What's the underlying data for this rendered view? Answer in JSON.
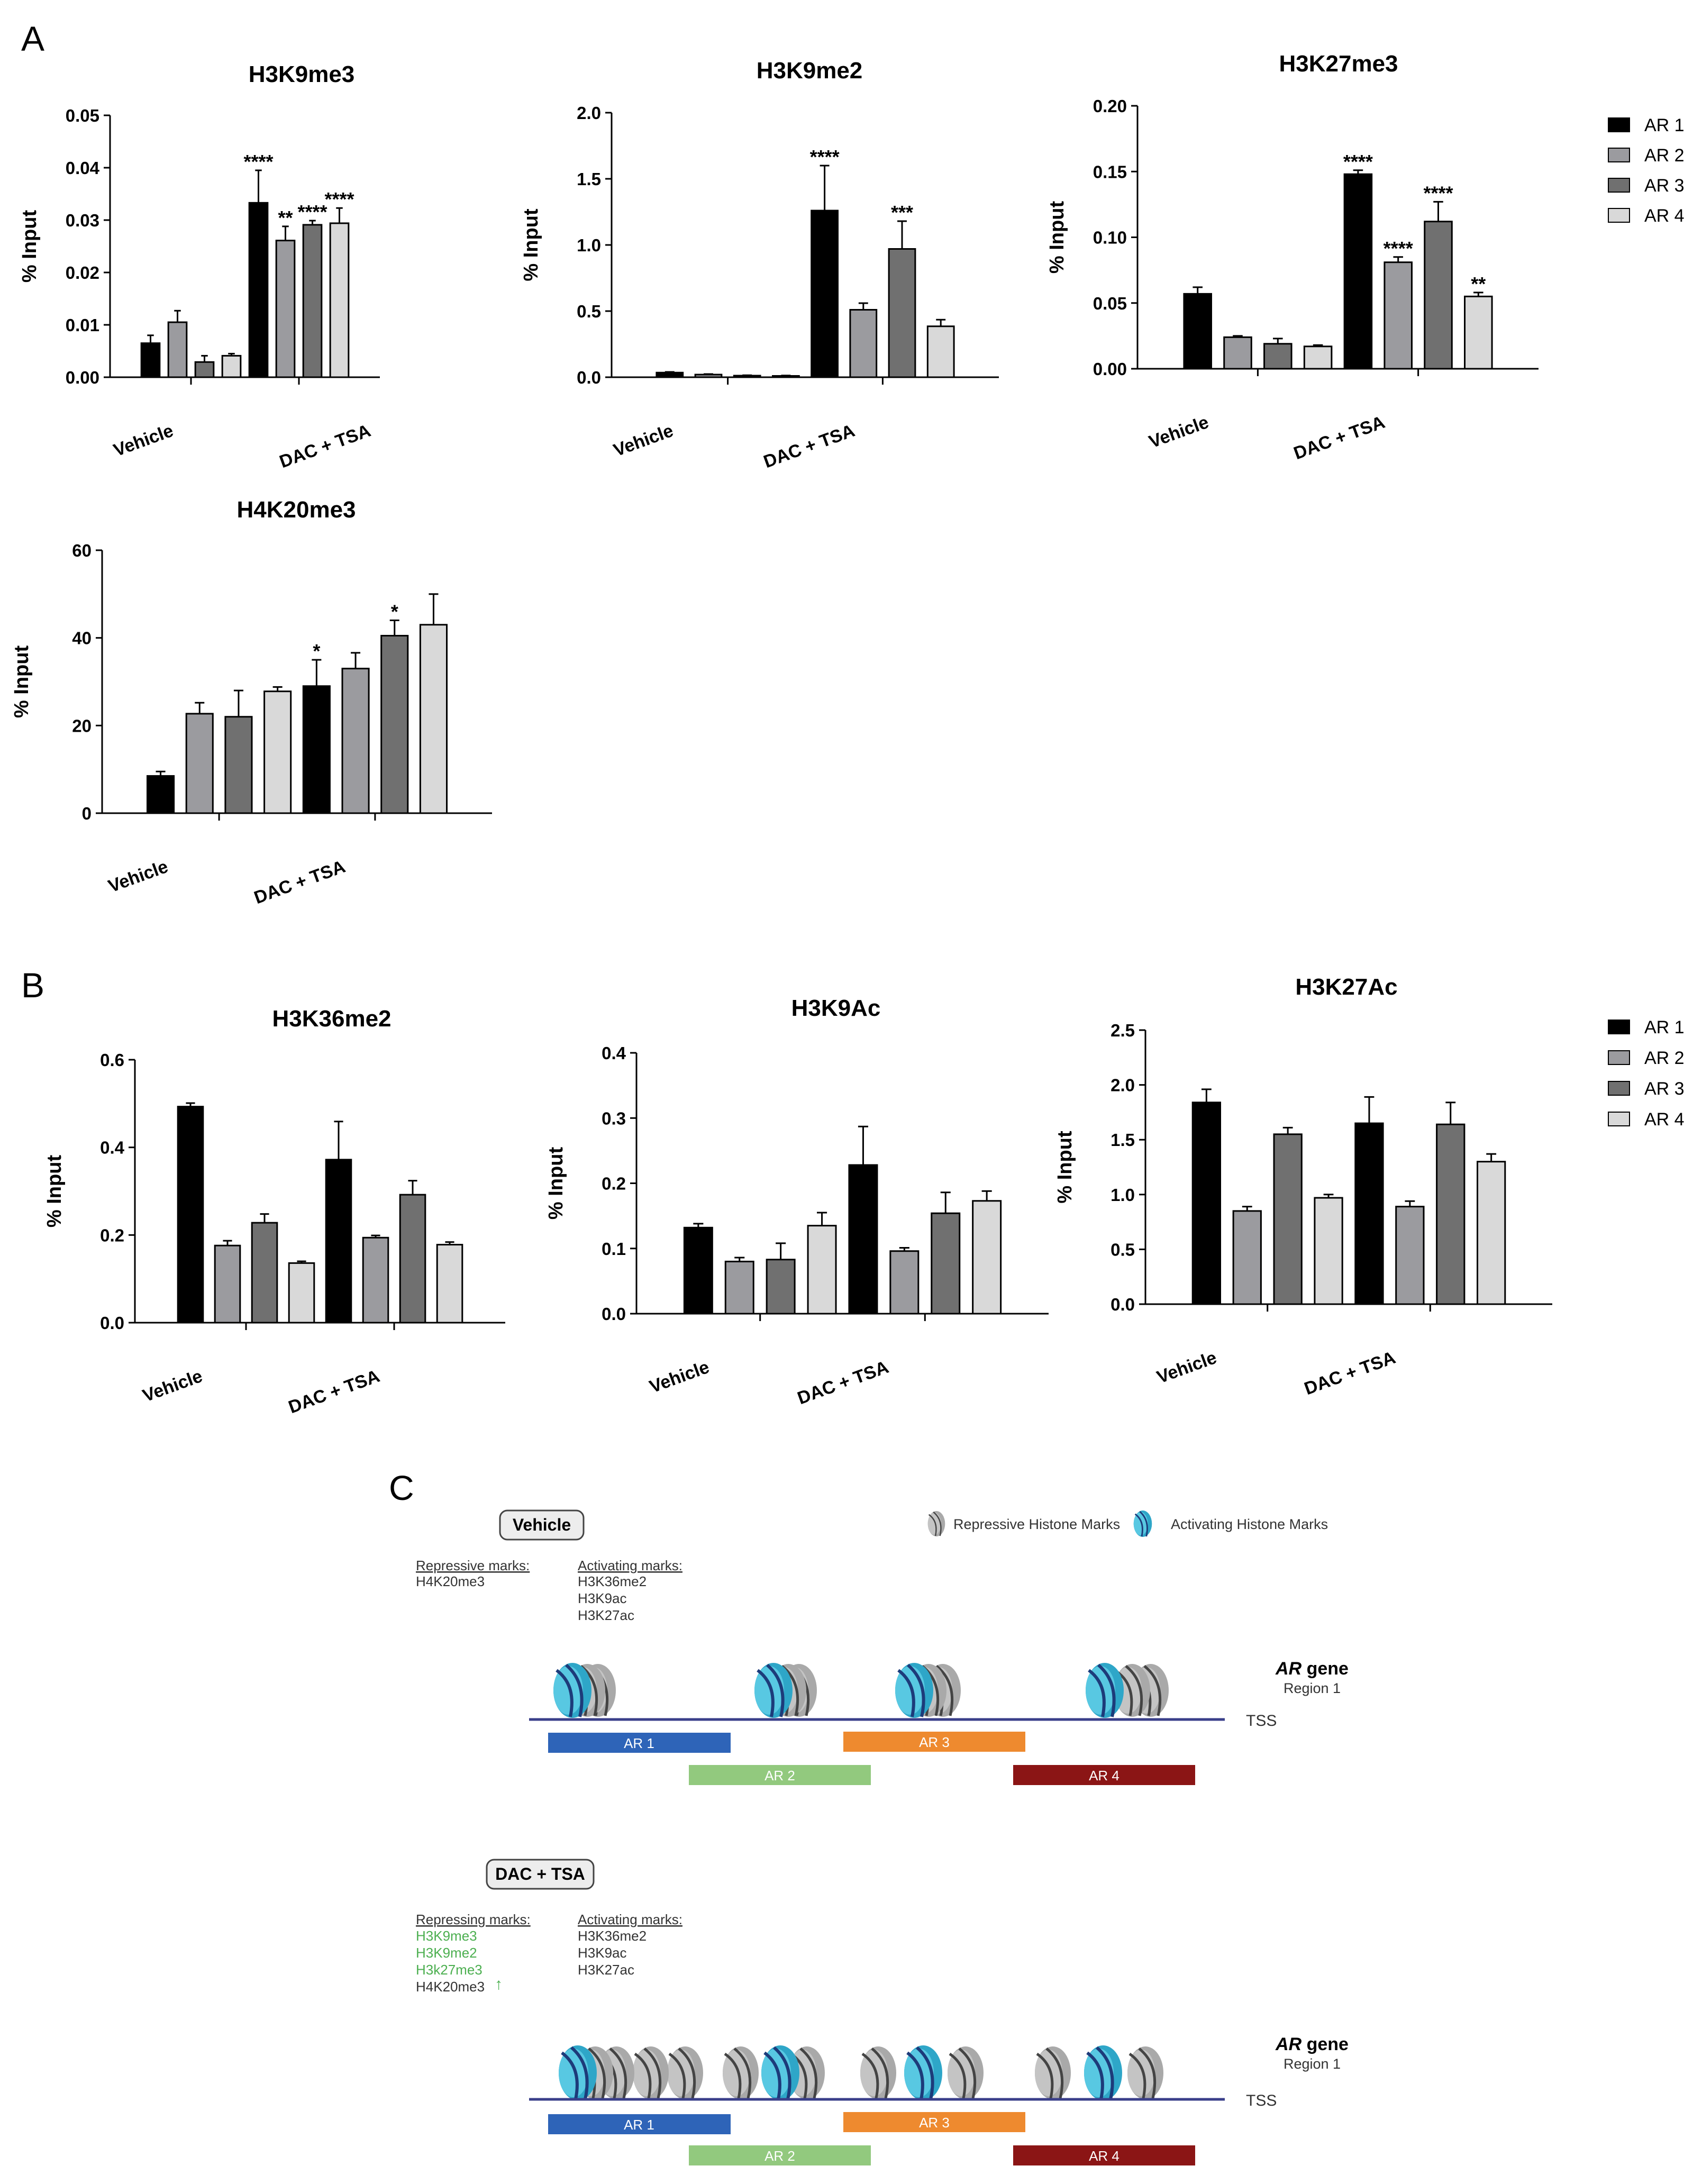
{
  "panels": {
    "a": "A",
    "b": "B",
    "c": "C"
  },
  "colors": {
    "series": [
      "#000000",
      "#9b9b9f",
      "#707070",
      "#d9d9d9"
    ],
    "region_bars": [
      "#2e64b8",
      "#92c97e",
      "#ee8a2f",
      "#8b1515"
    ],
    "repressive_nucleosome": "#a8a8a8",
    "activating_nucleosome": "#3bbad7",
    "dna_line": "#3a3f8a",
    "green_mark": "#4caf50"
  },
  "legend_a": {
    "items": [
      "AR 1",
      "AR 2",
      "AR 3",
      "AR 4"
    ]
  },
  "legend_b": {
    "items": [
      "AR 1",
      "AR 2",
      "AR 3",
      "AR 4"
    ]
  },
  "chart_data": [
    {
      "type": "bar",
      "title": "H3K9me3",
      "ylabel": "% Input",
      "xlabel": "",
      "categories": [
        "Vehicle",
        "DAC + TSA"
      ],
      "ylim": [
        0,
        0.05
      ],
      "yticks": [
        "0.00",
        "0.01",
        "0.02",
        "0.03",
        "0.04",
        "0.05"
      ],
      "series": [
        {
          "name": "AR 1",
          "values": [
            0.0065,
            0.0333
          ],
          "errors": [
            0.0015,
            0.0062
          ],
          "sig": [
            "",
            "****"
          ]
        },
        {
          "name": "AR 2",
          "values": [
            0.0105,
            0.0261
          ],
          "errors": [
            0.0022,
            0.0027
          ],
          "sig": [
            "",
            "**"
          ]
        },
        {
          "name": "AR 3",
          "values": [
            0.0029,
            0.0291
          ],
          "errors": [
            0.0012,
            0.0008
          ],
          "sig": [
            "",
            "****"
          ]
        },
        {
          "name": "AR 4",
          "values": [
            0.0041,
            0.0294
          ],
          "errors": [
            0.0004,
            0.0029
          ],
          "sig": [
            "",
            "****"
          ]
        }
      ]
    },
    {
      "type": "bar",
      "title": "H3K9me2",
      "ylabel": "% Input",
      "xlabel": "",
      "categories": [
        "Vehicle",
        "DAC + TSA"
      ],
      "ylim": [
        0,
        2.0
      ],
      "yticks": [
        "0.0",
        "0.5",
        "1.0",
        "1.5",
        "2.0"
      ],
      "series": [
        {
          "name": "AR 1",
          "values": [
            0.035,
            1.26
          ],
          "errors": [
            0.005,
            0.34
          ],
          "sig": [
            "",
            "****"
          ]
        },
        {
          "name": "AR 2",
          "values": [
            0.02,
            0.51
          ],
          "errors": [
            0.004,
            0.05
          ],
          "sig": [
            "",
            ""
          ]
        },
        {
          "name": "AR 3",
          "values": [
            0.012,
            0.97
          ],
          "errors": [
            0.003,
            0.21
          ],
          "sig": [
            "",
            "***"
          ]
        },
        {
          "name": "AR 4",
          "values": [
            0.01,
            0.385
          ],
          "errors": [
            0.003,
            0.05
          ],
          "sig": [
            "",
            ""
          ]
        }
      ]
    },
    {
      "type": "bar",
      "title": "H3K27me3",
      "ylabel": "% Input",
      "xlabel": "",
      "categories": [
        "Vehicle",
        "DAC + TSA"
      ],
      "ylim": [
        0,
        0.2
      ],
      "yticks": [
        "0.00",
        "0.05",
        "0.10",
        "0.15",
        "0.20"
      ],
      "series": [
        {
          "name": "AR 1",
          "values": [
            0.057,
            0.148
          ],
          "errors": [
            0.005,
            0.003
          ],
          "sig": [
            "",
            "****"
          ]
        },
        {
          "name": "AR 2",
          "values": [
            0.024,
            0.081
          ],
          "errors": [
            0.001,
            0.004
          ],
          "sig": [
            "",
            "****"
          ]
        },
        {
          "name": "AR 3",
          "values": [
            0.019,
            0.112
          ],
          "errors": [
            0.004,
            0.015
          ],
          "sig": [
            "",
            "****"
          ]
        },
        {
          "name": "AR 4",
          "values": [
            0.017,
            0.055
          ],
          "errors": [
            0.001,
            0.003
          ],
          "sig": [
            "",
            "**"
          ]
        }
      ]
    },
    {
      "type": "bar",
      "title": "H4K20me3",
      "ylabel": "% Input",
      "xlabel": "",
      "categories": [
        "Vehicle",
        "DAC + TSA"
      ],
      "ylim": [
        0,
        60
      ],
      "yticks": [
        "0",
        "20",
        "40",
        "60"
      ],
      "series": [
        {
          "name": "AR 1",
          "values": [
            8.5,
            29
          ],
          "errors": [
            1.0,
            6.0
          ],
          "sig": [
            "",
            "*"
          ]
        },
        {
          "name": "AR 2",
          "values": [
            22.7,
            33
          ],
          "errors": [
            2.5,
            3.6
          ],
          "sig": [
            "",
            ""
          ]
        },
        {
          "name": "AR 3",
          "values": [
            22,
            40.5
          ],
          "errors": [
            6.0,
            3.5
          ],
          "sig": [
            "",
            "*"
          ]
        },
        {
          "name": "AR 4",
          "values": [
            27.8,
            43
          ],
          "errors": [
            1.0,
            7.0
          ],
          "sig": [
            "",
            ""
          ]
        }
      ]
    },
    {
      "type": "bar",
      "title": "H3K36me2",
      "ylabel": "% Input",
      "xlabel": "",
      "categories": [
        "Vehicle",
        "DAC + TSA"
      ],
      "ylim": [
        0,
        0.6
      ],
      "yticks": [
        "0.0",
        "0.2",
        "0.4",
        "0.6"
      ],
      "series": [
        {
          "name": "AR 1",
          "values": [
            0.493,
            0.372
          ],
          "errors": [
            0.008,
            0.087
          ],
          "sig": [
            "",
            ""
          ]
        },
        {
          "name": "AR 2",
          "values": [
            0.176,
            0.194
          ],
          "errors": [
            0.011,
            0.005
          ],
          "sig": [
            "",
            ""
          ]
        },
        {
          "name": "AR 3",
          "values": [
            0.228,
            0.292
          ],
          "errors": [
            0.02,
            0.032
          ],
          "sig": [
            "",
            ""
          ]
        },
        {
          "name": "AR 4",
          "values": [
            0.136,
            0.178
          ],
          "errors": [
            0.004,
            0.006
          ],
          "sig": [
            "",
            ""
          ]
        }
      ]
    },
    {
      "type": "bar",
      "title": "H3K9Ac",
      "ylabel": "% Input",
      "xlabel": "",
      "categories": [
        "Vehicle",
        "DAC + TSA"
      ],
      "ylim": [
        0,
        0.4
      ],
      "yticks": [
        "0.0",
        "0.1",
        "0.2",
        "0.3",
        "0.4"
      ],
      "series": [
        {
          "name": "AR 1",
          "values": [
            0.132,
            0.228
          ],
          "errors": [
            0.006,
            0.059
          ],
          "sig": [
            "",
            ""
          ]
        },
        {
          "name": "AR 2",
          "values": [
            0.08,
            0.096
          ],
          "errors": [
            0.006,
            0.005
          ],
          "sig": [
            "",
            ""
          ]
        },
        {
          "name": "AR 3",
          "values": [
            0.083,
            0.154
          ],
          "errors": [
            0.025,
            0.032
          ],
          "sig": [
            "",
            ""
          ]
        },
        {
          "name": "AR 4",
          "values": [
            0.135,
            0.173
          ],
          "errors": [
            0.02,
            0.015
          ],
          "sig": [
            "",
            ""
          ]
        }
      ]
    },
    {
      "type": "bar",
      "title": "H3K27Ac",
      "ylabel": "% Input",
      "xlabel": "",
      "categories": [
        "Vehicle",
        "DAC + TSA"
      ],
      "ylim": [
        0,
        2.5
      ],
      "yticks": [
        "0.0",
        "0.5",
        "1.0",
        "1.5",
        "2.0",
        "2.5"
      ],
      "series": [
        {
          "name": "AR 1",
          "values": [
            1.84,
            1.65
          ],
          "errors": [
            0.12,
            0.24
          ],
          "sig": [
            "",
            ""
          ]
        },
        {
          "name": "AR 2",
          "values": [
            0.85,
            0.89
          ],
          "errors": [
            0.04,
            0.05
          ],
          "sig": [
            "",
            ""
          ]
        },
        {
          "name": "AR 3",
          "values": [
            1.55,
            1.64
          ],
          "errors": [
            0.06,
            0.2
          ],
          "sig": [
            "",
            ""
          ]
        },
        {
          "name": "AR 4",
          "values": [
            0.97,
            1.3
          ],
          "errors": [
            0.03,
            0.07
          ],
          "sig": [
            "",
            ""
          ]
        }
      ]
    }
  ],
  "diagram": {
    "legend": {
      "repressive": "Repressive Histone Marks",
      "activating": "Activating Histone Marks"
    },
    "vehicle": {
      "badge": "Vehicle",
      "repressive_header": "Repressive marks:",
      "repressive_marks": [
        "H4K20me3"
      ],
      "activating_header": "Activating marks:",
      "activating_marks": [
        "H3K36me2",
        "H3K9ac",
        "H3K27ac"
      ],
      "gene": "AR",
      "gene_suffix": " gene",
      "region": "Region 1",
      "tss": "TSS",
      "regions": [
        "AR 1",
        "AR 2",
        "AR 3",
        "AR 4"
      ]
    },
    "dac": {
      "badge": "DAC + TSA",
      "repressive_header": "Repressing marks:",
      "repressive_marks_green": [
        "H3K9me3",
        "H3K9me2",
        "H3k27me3"
      ],
      "repressive_marks_black": [
        "H4K20me3"
      ],
      "up_arrow": "↑",
      "activating_header": "Activating marks:",
      "activating_marks": [
        "H3K36me2",
        "H3K9ac",
        "H3K27ac"
      ],
      "gene": "AR",
      "gene_suffix": " gene",
      "region": "Region 1",
      "tss": "TSS",
      "regions": [
        "AR 1",
        "AR 2",
        "AR 3",
        "AR 4"
      ]
    }
  }
}
